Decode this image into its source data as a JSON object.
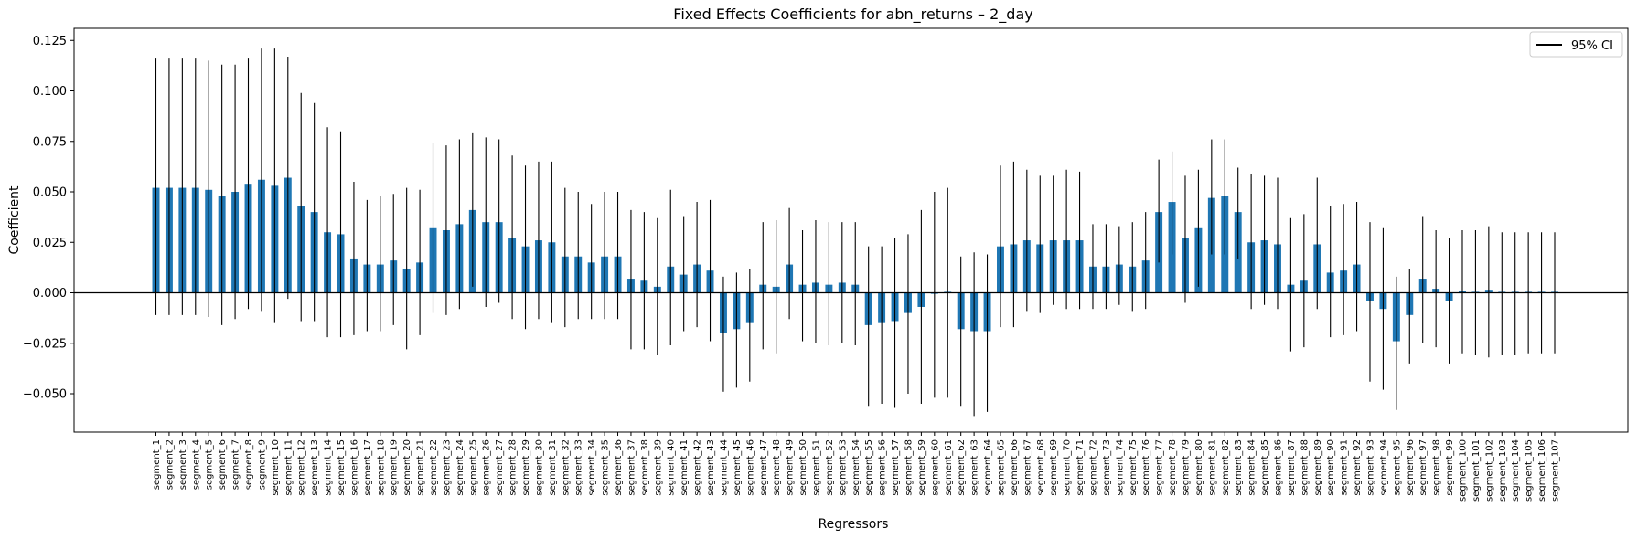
{
  "chart_data": {
    "type": "bar",
    "title": "Fixed Effects Coefficients for abn_returns – 2_day",
    "xlabel": "Regressors",
    "ylabel": "Coefficient",
    "ylim": [
      -0.069,
      0.131
    ],
    "yticks": [
      -0.05,
      -0.025,
      0.0,
      0.025,
      0.05,
      0.075,
      0.1,
      0.125
    ],
    "ytick_labels": [
      "−0.050",
      "−0.025",
      "0.000",
      "0.025",
      "0.050",
      "0.075",
      "0.100",
      "0.125"
    ],
    "legend": {
      "label": "95% CI",
      "position": "top-right"
    },
    "grid": false,
    "colors": {
      "bar": "#1f77b4",
      "errorbar": "#000000",
      "zero_line": "#000000"
    },
    "categories": [
      "segment_1",
      "segment_2",
      "segment_3",
      "segment_4",
      "segment_5",
      "segment_6",
      "segment_7",
      "segment_8",
      "segment_9",
      "segment_10",
      "segment_11",
      "segment_12",
      "segment_13",
      "segment_14",
      "segment_15",
      "segment_16",
      "segment_17",
      "segment_18",
      "segment_19",
      "segment_20",
      "segment_21",
      "segment_22",
      "segment_23",
      "segment_24",
      "segment_25",
      "segment_26",
      "segment_27",
      "segment_28",
      "segment_29",
      "segment_30",
      "segment_31",
      "segment_32",
      "segment_33",
      "segment_34",
      "segment_35",
      "segment_36",
      "segment_37",
      "segment_38",
      "segment_39",
      "segment_40",
      "segment_41",
      "segment_42",
      "segment_43",
      "segment_44",
      "segment_45",
      "segment_46",
      "segment_47",
      "segment_48",
      "segment_49",
      "segment_50",
      "segment_51",
      "segment_52",
      "segment_53",
      "segment_54",
      "segment_55",
      "segment_56",
      "segment_57",
      "segment_58",
      "segment_59",
      "segment_60",
      "segment_61",
      "segment_62",
      "segment_63",
      "segment_64",
      "segment_65",
      "segment_66",
      "segment_67",
      "segment_68",
      "segment_69",
      "segment_70",
      "segment_71",
      "segment_72",
      "segment_73",
      "segment_74",
      "segment_75",
      "segment_76",
      "segment_77",
      "segment_78",
      "segment_79",
      "segment_80",
      "segment_81",
      "segment_82",
      "segment_83",
      "segment_84",
      "segment_85",
      "segment_86",
      "segment_87",
      "segment_88",
      "segment_89",
      "segment_90",
      "segment_91",
      "segment_92",
      "segment_93",
      "segment_94",
      "segment_95",
      "segment_96",
      "segment_97",
      "segment_98",
      "segment_99",
      "segment_100",
      "segment_101",
      "segment_102",
      "segment_103",
      "segment_104",
      "segment_105",
      "segment_106",
      "segment_107"
    ],
    "values": [
      0.052,
      0.052,
      0.052,
      0.052,
      0.051,
      0.048,
      0.05,
      0.054,
      0.056,
      0.053,
      0.057,
      0.043,
      0.04,
      0.03,
      0.029,
      0.017,
      0.014,
      0.014,
      0.016,
      0.012,
      0.015,
      0.032,
      0.031,
      0.034,
      0.041,
      0.035,
      0.035,
      0.027,
      0.023,
      0.026,
      0.025,
      0.018,
      0.018,
      0.015,
      0.018,
      0.018,
      0.007,
      0.006,
      0.003,
      0.013,
      0.009,
      0.014,
      0.011,
      -0.02,
      -0.018,
      -0.015,
      0.004,
      0.003,
      0.014,
      0.004,
      0.005,
      0.004,
      0.005,
      0.004,
      -0.016,
      -0.015,
      -0.014,
      -0.01,
      -0.007,
      -0.0005,
      0.0005,
      -0.018,
      -0.019,
      -0.019,
      0.023,
      0.024,
      0.026,
      0.024,
      0.026,
      0.026,
      0.026,
      0.013,
      0.013,
      0.014,
      0.013,
      0.016,
      0.04,
      0.045,
      0.027,
      0.032,
      0.047,
      0.048,
      0.04,
      0.025,
      0.026,
      0.024,
      0.004,
      0.006,
      0.024,
      0.01,
      0.011,
      0.014,
      -0.004,
      -0.008,
      -0.024,
      -0.011,
      0.007,
      0.002,
      -0.004,
      0.001,
      0.0005,
      0.0015,
      0.0005,
      0.0005,
      0.0005,
      0.0005,
      0.0005
    ],
    "ci_lower": [
      -0.011,
      -0.011,
      -0.011,
      -0.011,
      -0.012,
      -0.016,
      -0.013,
      -0.008,
      -0.009,
      -0.015,
      -0.003,
      -0.014,
      -0.014,
      -0.022,
      -0.022,
      -0.021,
      -0.019,
      -0.019,
      -0.016,
      -0.028,
      -0.021,
      -0.01,
      -0.011,
      -0.008,
      0.003,
      -0.007,
      -0.005,
      -0.013,
      -0.018,
      -0.013,
      -0.015,
      -0.017,
      -0.013,
      -0.013,
      -0.013,
      -0.013,
      -0.028,
      -0.028,
      -0.031,
      -0.026,
      -0.019,
      -0.017,
      -0.024,
      -0.049,
      -0.047,
      -0.044,
      -0.028,
      -0.03,
      -0.013,
      -0.024,
      -0.025,
      -0.026,
      -0.025,
      -0.026,
      -0.056,
      -0.055,
      -0.057,
      -0.05,
      -0.055,
      -0.052,
      -0.052,
      -0.056,
      -0.061,
      -0.059,
      -0.017,
      -0.017,
      -0.009,
      -0.01,
      -0.006,
      -0.008,
      -0.008,
      -0.008,
      -0.008,
      -0.006,
      -0.009,
      -0.008,
      0.015,
      0.019,
      -0.005,
      0.003,
      0.019,
      0.019,
      0.017,
      -0.008,
      -0.006,
      -0.008,
      -0.029,
      -0.027,
      -0.008,
      -0.022,
      -0.021,
      -0.019,
      -0.044,
      -0.048,
      -0.058,
      -0.035,
      -0.025,
      -0.027,
      -0.035,
      -0.03,
      -0.031,
      -0.032,
      -0.031,
      -0.031,
      -0.03,
      -0.03,
      -0.03
    ],
    "ci_upper": [
      0.116,
      0.116,
      0.116,
      0.116,
      0.115,
      0.113,
      0.113,
      0.116,
      0.121,
      0.121,
      0.117,
      0.099,
      0.094,
      0.082,
      0.08,
      0.055,
      0.046,
      0.048,
      0.049,
      0.052,
      0.051,
      0.074,
      0.073,
      0.076,
      0.079,
      0.077,
      0.076,
      0.068,
      0.063,
      0.065,
      0.065,
      0.052,
      0.05,
      0.044,
      0.05,
      0.05,
      0.041,
      0.04,
      0.037,
      0.051,
      0.038,
      0.045,
      0.046,
      0.008,
      0.01,
      0.012,
      0.035,
      0.036,
      0.042,
      0.031,
      0.036,
      0.035,
      0.035,
      0.035,
      0.023,
      0.023,
      0.027,
      0.029,
      0.041,
      0.05,
      0.052,
      0.018,
      0.02,
      0.019,
      0.063,
      0.065,
      0.061,
      0.058,
      0.058,
      0.061,
      0.06,
      0.034,
      0.034,
      0.033,
      0.035,
      0.04,
      0.066,
      0.07,
      0.058,
      0.061,
      0.076,
      0.076,
      0.062,
      0.059,
      0.058,
      0.057,
      0.037,
      0.039,
      0.057,
      0.043,
      0.044,
      0.045,
      0.035,
      0.032,
      0.008,
      0.012,
      0.038,
      0.031,
      0.027,
      0.031,
      0.031,
      0.033,
      0.03,
      0.03,
      0.03,
      0.03,
      0.03
    ]
  }
}
